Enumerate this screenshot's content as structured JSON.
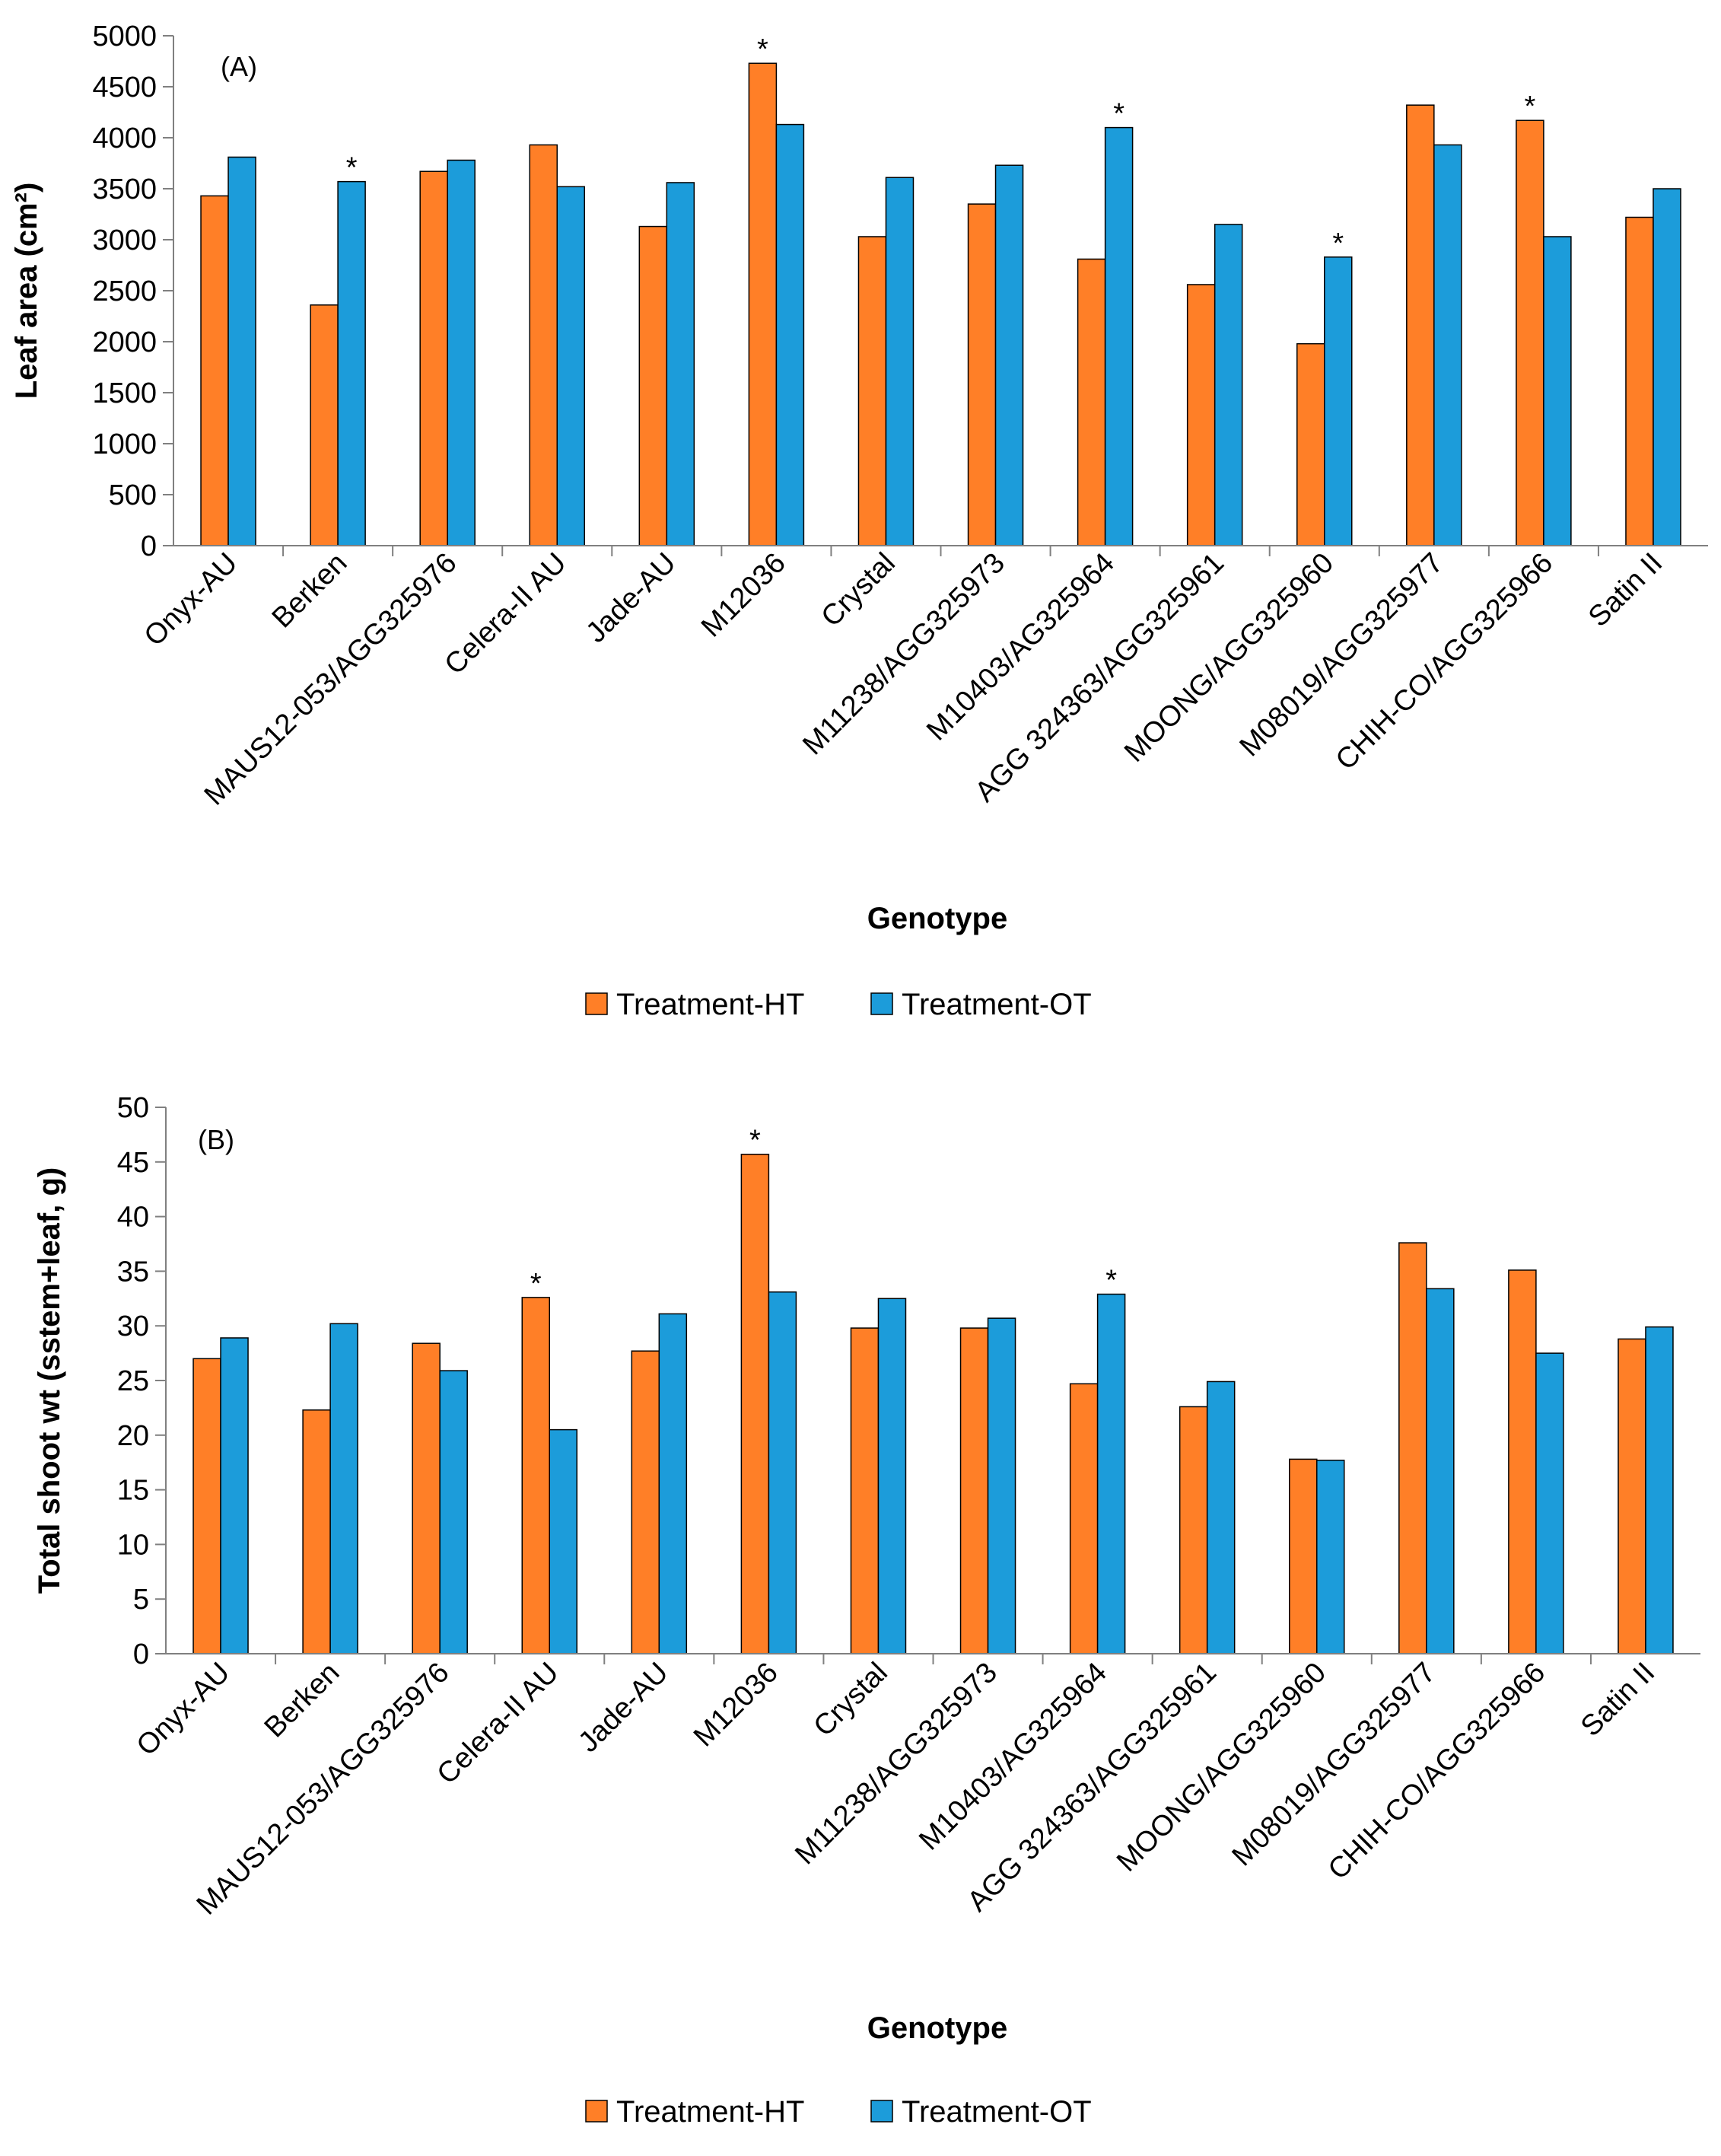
{
  "colors": {
    "ht": "#FF7F27",
    "ot": "#1C9CDA",
    "axis": "#808080"
  },
  "chart_data": [
    {
      "type": "bar",
      "panel_label": "(A)",
      "xlabel": "Genotype",
      "ylabel": "Leaf area (cm²)",
      "ylim": [
        0,
        5000
      ],
      "yticks": [
        0,
        500,
        1000,
        1500,
        2000,
        2500,
        3000,
        3500,
        4000,
        4500,
        5000
      ],
      "categories": [
        "Onyx-AU",
        "Berken",
        "MAUS12-053/AGG325976",
        "Celera-II AU",
        "Jade-AU",
        "M12036",
        "Crystal",
        "M11238/AGG325973",
        "M10403/AG325964",
        "AGG 324363/AGG325961",
        "MOONG/AGG325960",
        "M08019/AGG325977",
        "CHIH-CO/AGG325966",
        "Satin II"
      ],
      "series": [
        {
          "name": "Treatment-HT",
          "values": [
            3430,
            2360,
            3670,
            3930,
            3130,
            4730,
            3030,
            3350,
            2810,
            2560,
            1980,
            4320,
            4170,
            3220
          ]
        },
        {
          "name": "Treatment-OT",
          "values": [
            3810,
            3570,
            3780,
            3520,
            3560,
            4130,
            3610,
            3730,
            4100,
            3150,
            2830,
            3930,
            3030,
            3500
          ]
        }
      ],
      "significance": [
        "",
        "*",
        "",
        "",
        "",
        "*",
        "",
        "",
        "*",
        "",
        "*",
        "",
        "*",
        ""
      ],
      "legend": [
        "Treatment-HT",
        "Treatment-OT"
      ]
    },
    {
      "type": "bar",
      "panel_label": "(B)",
      "xlabel": "Genotype",
      "ylabel": "Total shoot wt (sstem+leaf, g)",
      "ylim": [
        0,
        50
      ],
      "yticks": [
        0,
        5,
        10,
        15,
        20,
        25,
        30,
        35,
        40,
        45,
        50
      ],
      "categories": [
        "Onyx-AU",
        "Berken",
        "MAUS12-053/AGG325976",
        "Celera-II AU",
        "Jade-AU",
        "M12036",
        "Crystal",
        "M11238/AGG325973",
        "M10403/AG325964",
        "AGG 324363/AGG325961",
        "MOONG/AGG325960",
        "M08019/AGG325977",
        "CHIH-CO/AGG325966",
        "Satin II"
      ],
      "series": [
        {
          "name": "Treatment-HT",
          "values": [
            27.0,
            22.3,
            28.4,
            32.6,
            27.7,
            45.7,
            29.8,
            29.8,
            24.7,
            22.6,
            17.8,
            37.6,
            35.1,
            28.8
          ]
        },
        {
          "name": "Treatment-OT",
          "values": [
            28.9,
            30.2,
            25.9,
            20.5,
            31.1,
            33.1,
            32.5,
            30.7,
            32.9,
            24.9,
            17.7,
            33.4,
            27.5,
            29.9
          ]
        }
      ],
      "significance": [
        "",
        "",
        "",
        "*",
        "",
        "*",
        "",
        "",
        "*",
        "",
        "",
        "",
        "",
        ""
      ],
      "legend": [
        "Treatment-HT",
        "Treatment-OT"
      ]
    }
  ]
}
